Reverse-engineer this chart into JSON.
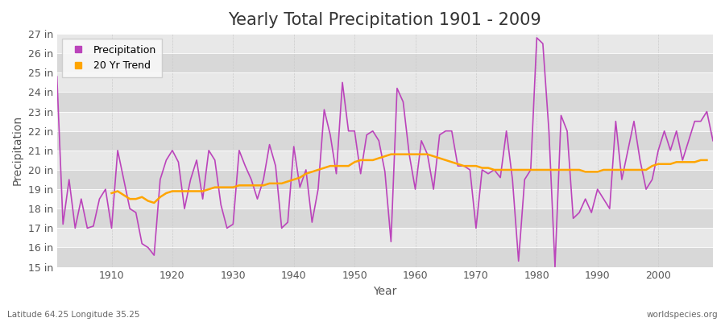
{
  "title": "Yearly Total Precipitation 1901 - 2009",
  "xlabel": "Year",
  "ylabel": "Precipitation",
  "footnote_left": "Latitude 64.25 Longitude 35.25",
  "footnote_right": "worldspecies.org",
  "years": [
    1901,
    1902,
    1903,
    1904,
    1905,
    1906,
    1907,
    1908,
    1909,
    1910,
    1911,
    1912,
    1913,
    1914,
    1915,
    1916,
    1917,
    1918,
    1919,
    1920,
    1921,
    1922,
    1923,
    1924,
    1925,
    1926,
    1927,
    1928,
    1929,
    1930,
    1931,
    1932,
    1933,
    1934,
    1935,
    1936,
    1937,
    1938,
    1939,
    1940,
    1941,
    1942,
    1943,
    1944,
    1945,
    1946,
    1947,
    1948,
    1949,
    1950,
    1951,
    1952,
    1953,
    1954,
    1955,
    1956,
    1957,
    1958,
    1959,
    1960,
    1961,
    1962,
    1963,
    1964,
    1965,
    1966,
    1967,
    1968,
    1969,
    1970,
    1971,
    1972,
    1973,
    1974,
    1975,
    1976,
    1977,
    1978,
    1979,
    1980,
    1981,
    1982,
    1983,
    1984,
    1985,
    1986,
    1987,
    1988,
    1989,
    1990,
    1991,
    1992,
    1993,
    1994,
    1995,
    1996,
    1997,
    1998,
    1999,
    2000,
    2001,
    2002,
    2003,
    2004,
    2005,
    2006,
    2007,
    2008,
    2009
  ],
  "precip": [
    24.8,
    17.2,
    19.5,
    17.0,
    18.5,
    17.0,
    17.1,
    18.5,
    19.0,
    17.0,
    21.0,
    19.5,
    18.0,
    17.8,
    16.2,
    16.0,
    15.6,
    19.5,
    20.5,
    21.0,
    20.4,
    18.0,
    19.5,
    20.5,
    18.5,
    21.0,
    20.5,
    18.2,
    17.0,
    17.2,
    21.0,
    20.2,
    19.5,
    18.5,
    19.5,
    21.3,
    20.2,
    17.0,
    17.3,
    21.2,
    19.1,
    20.0,
    17.3,
    19.0,
    23.1,
    21.8,
    19.8,
    24.5,
    22.0,
    22.0,
    19.8,
    21.8,
    22.0,
    21.5,
    19.9,
    16.3,
    24.2,
    23.5,
    20.8,
    19.0,
    21.5,
    20.8,
    19.0,
    21.8,
    22.0,
    22.0,
    20.2,
    20.2,
    20.0,
    17.0,
    20.0,
    19.8,
    20.0,
    19.6,
    22.0,
    19.5,
    15.3,
    19.5,
    20.0,
    26.8,
    26.5,
    22.0,
    15.0,
    22.8,
    22.0,
    17.5,
    17.8,
    18.5,
    17.8,
    19.0,
    18.5,
    18.0,
    22.5,
    19.5,
    21.0,
    22.5,
    20.5,
    19.0,
    19.5,
    21.0,
    22.0,
    21.0,
    22.0,
    20.5,
    21.5,
    22.5,
    22.5,
    23.0,
    21.5
  ],
  "trend": [
    null,
    null,
    null,
    null,
    null,
    null,
    null,
    null,
    null,
    18.8,
    18.9,
    18.7,
    18.5,
    18.5,
    18.6,
    18.4,
    18.3,
    18.6,
    18.8,
    18.9,
    18.9,
    18.9,
    18.9,
    18.9,
    18.9,
    19.0,
    19.1,
    19.1,
    19.1,
    19.1,
    19.2,
    19.2,
    19.2,
    19.2,
    19.2,
    19.3,
    19.3,
    19.3,
    19.4,
    19.5,
    19.6,
    19.8,
    19.9,
    20.0,
    20.1,
    20.2,
    20.2,
    20.2,
    20.2,
    20.4,
    20.5,
    20.5,
    20.5,
    20.6,
    20.7,
    20.8,
    20.8,
    20.8,
    20.8,
    20.8,
    20.8,
    20.8,
    20.7,
    20.6,
    20.5,
    20.4,
    20.3,
    20.2,
    20.2,
    20.2,
    20.1,
    20.1,
    20.0,
    20.0,
    20.0,
    20.0,
    20.0,
    20.0,
    20.0,
    20.0,
    20.0,
    20.0,
    20.0,
    20.0,
    20.0,
    20.0,
    20.0,
    19.9,
    19.9,
    19.9,
    20.0,
    20.0,
    20.0,
    20.0,
    20.0,
    20.0,
    20.0,
    20.0,
    20.2,
    20.3,
    20.3,
    20.3,
    20.4,
    20.4,
    20.4,
    20.4,
    20.5,
    20.5
  ],
  "precip_color": "#BB44BB",
  "trend_color": "#FFA500",
  "bg_color": "#f0f0f0",
  "plot_bg_light": "#e8e8e8",
  "plot_bg_dark": "#d8d8d8",
  "grid_color": "#ffffff",
  "ylim": [
    15,
    27
  ],
  "ytick_labels": [
    "15 in",
    "16 in",
    "17 in",
    "18 in",
    "19 in",
    "20 in",
    "21 in",
    "22 in",
    "23 in",
    "24 in",
    "25 in",
    "26 in",
    "27 in"
  ],
  "ytick_values": [
    15,
    16,
    17,
    18,
    19,
    20,
    21,
    22,
    23,
    24,
    25,
    26,
    27
  ],
  "legend_labels": [
    "Precipitation",
    "20 Yr Trend"
  ],
  "title_fontsize": 15,
  "label_fontsize": 10,
  "tick_fontsize": 9
}
